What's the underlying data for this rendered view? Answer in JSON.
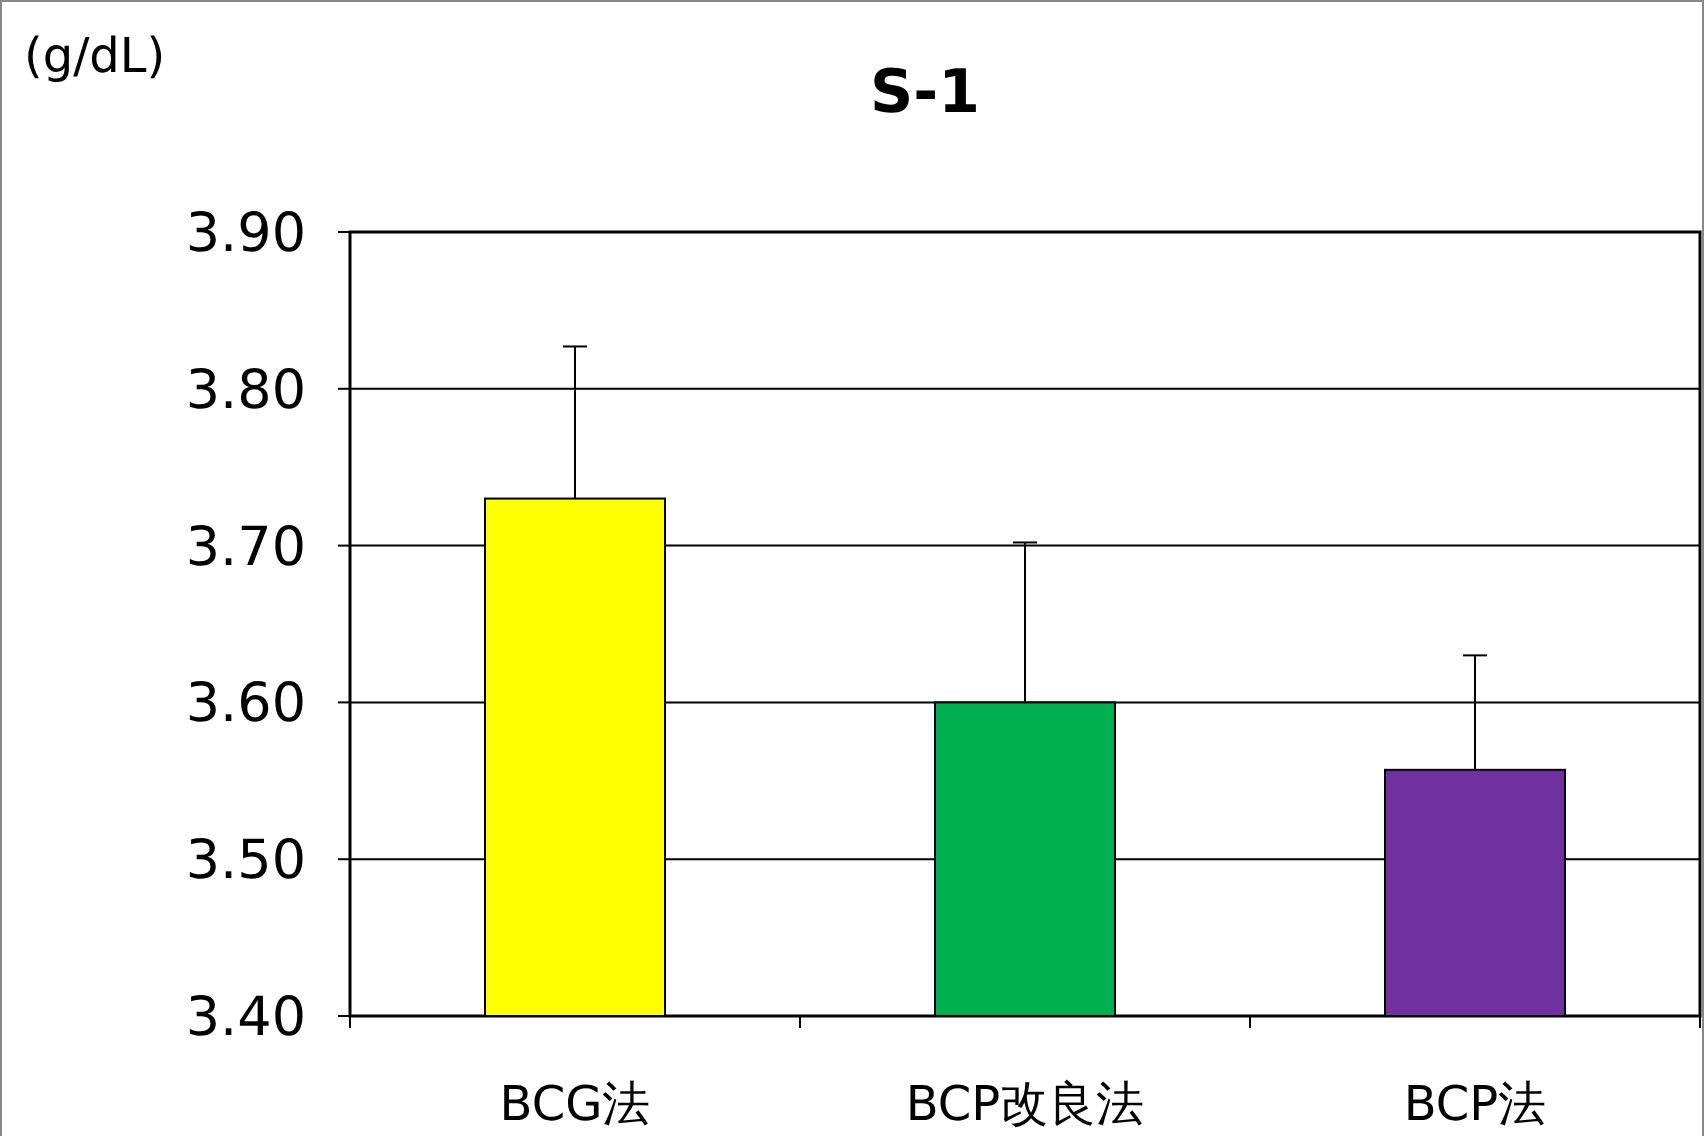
{
  "chart_data": {
    "type": "bar",
    "title": "S-1",
    "ylabel": "(g/dL)",
    "categories": [
      "BCG法",
      "BCP改良法",
      "BCP法"
    ],
    "values": [
      3.73,
      3.6,
      3.557
    ],
    "colors": [
      "#ffff00",
      "#00b050",
      "#7030a0"
    ],
    "errors": [
      [
        3.73,
        3.827
      ],
      [
        3.6,
        3.702
      ],
      [
        3.557,
        3.63
      ]
    ],
    "ylim": [
      3.4,
      3.9
    ],
    "yticks": [
      {
        "value": 3.4,
        "label": "3.40"
      },
      {
        "value": 3.5,
        "label": "3.50"
      },
      {
        "value": 3.6,
        "label": "3.60"
      },
      {
        "value": 3.7,
        "label": "3.70"
      },
      {
        "value": 3.8,
        "label": "3.80"
      },
      {
        "value": 3.9,
        "label": "3.90"
      }
    ],
    "grid": "y"
  }
}
